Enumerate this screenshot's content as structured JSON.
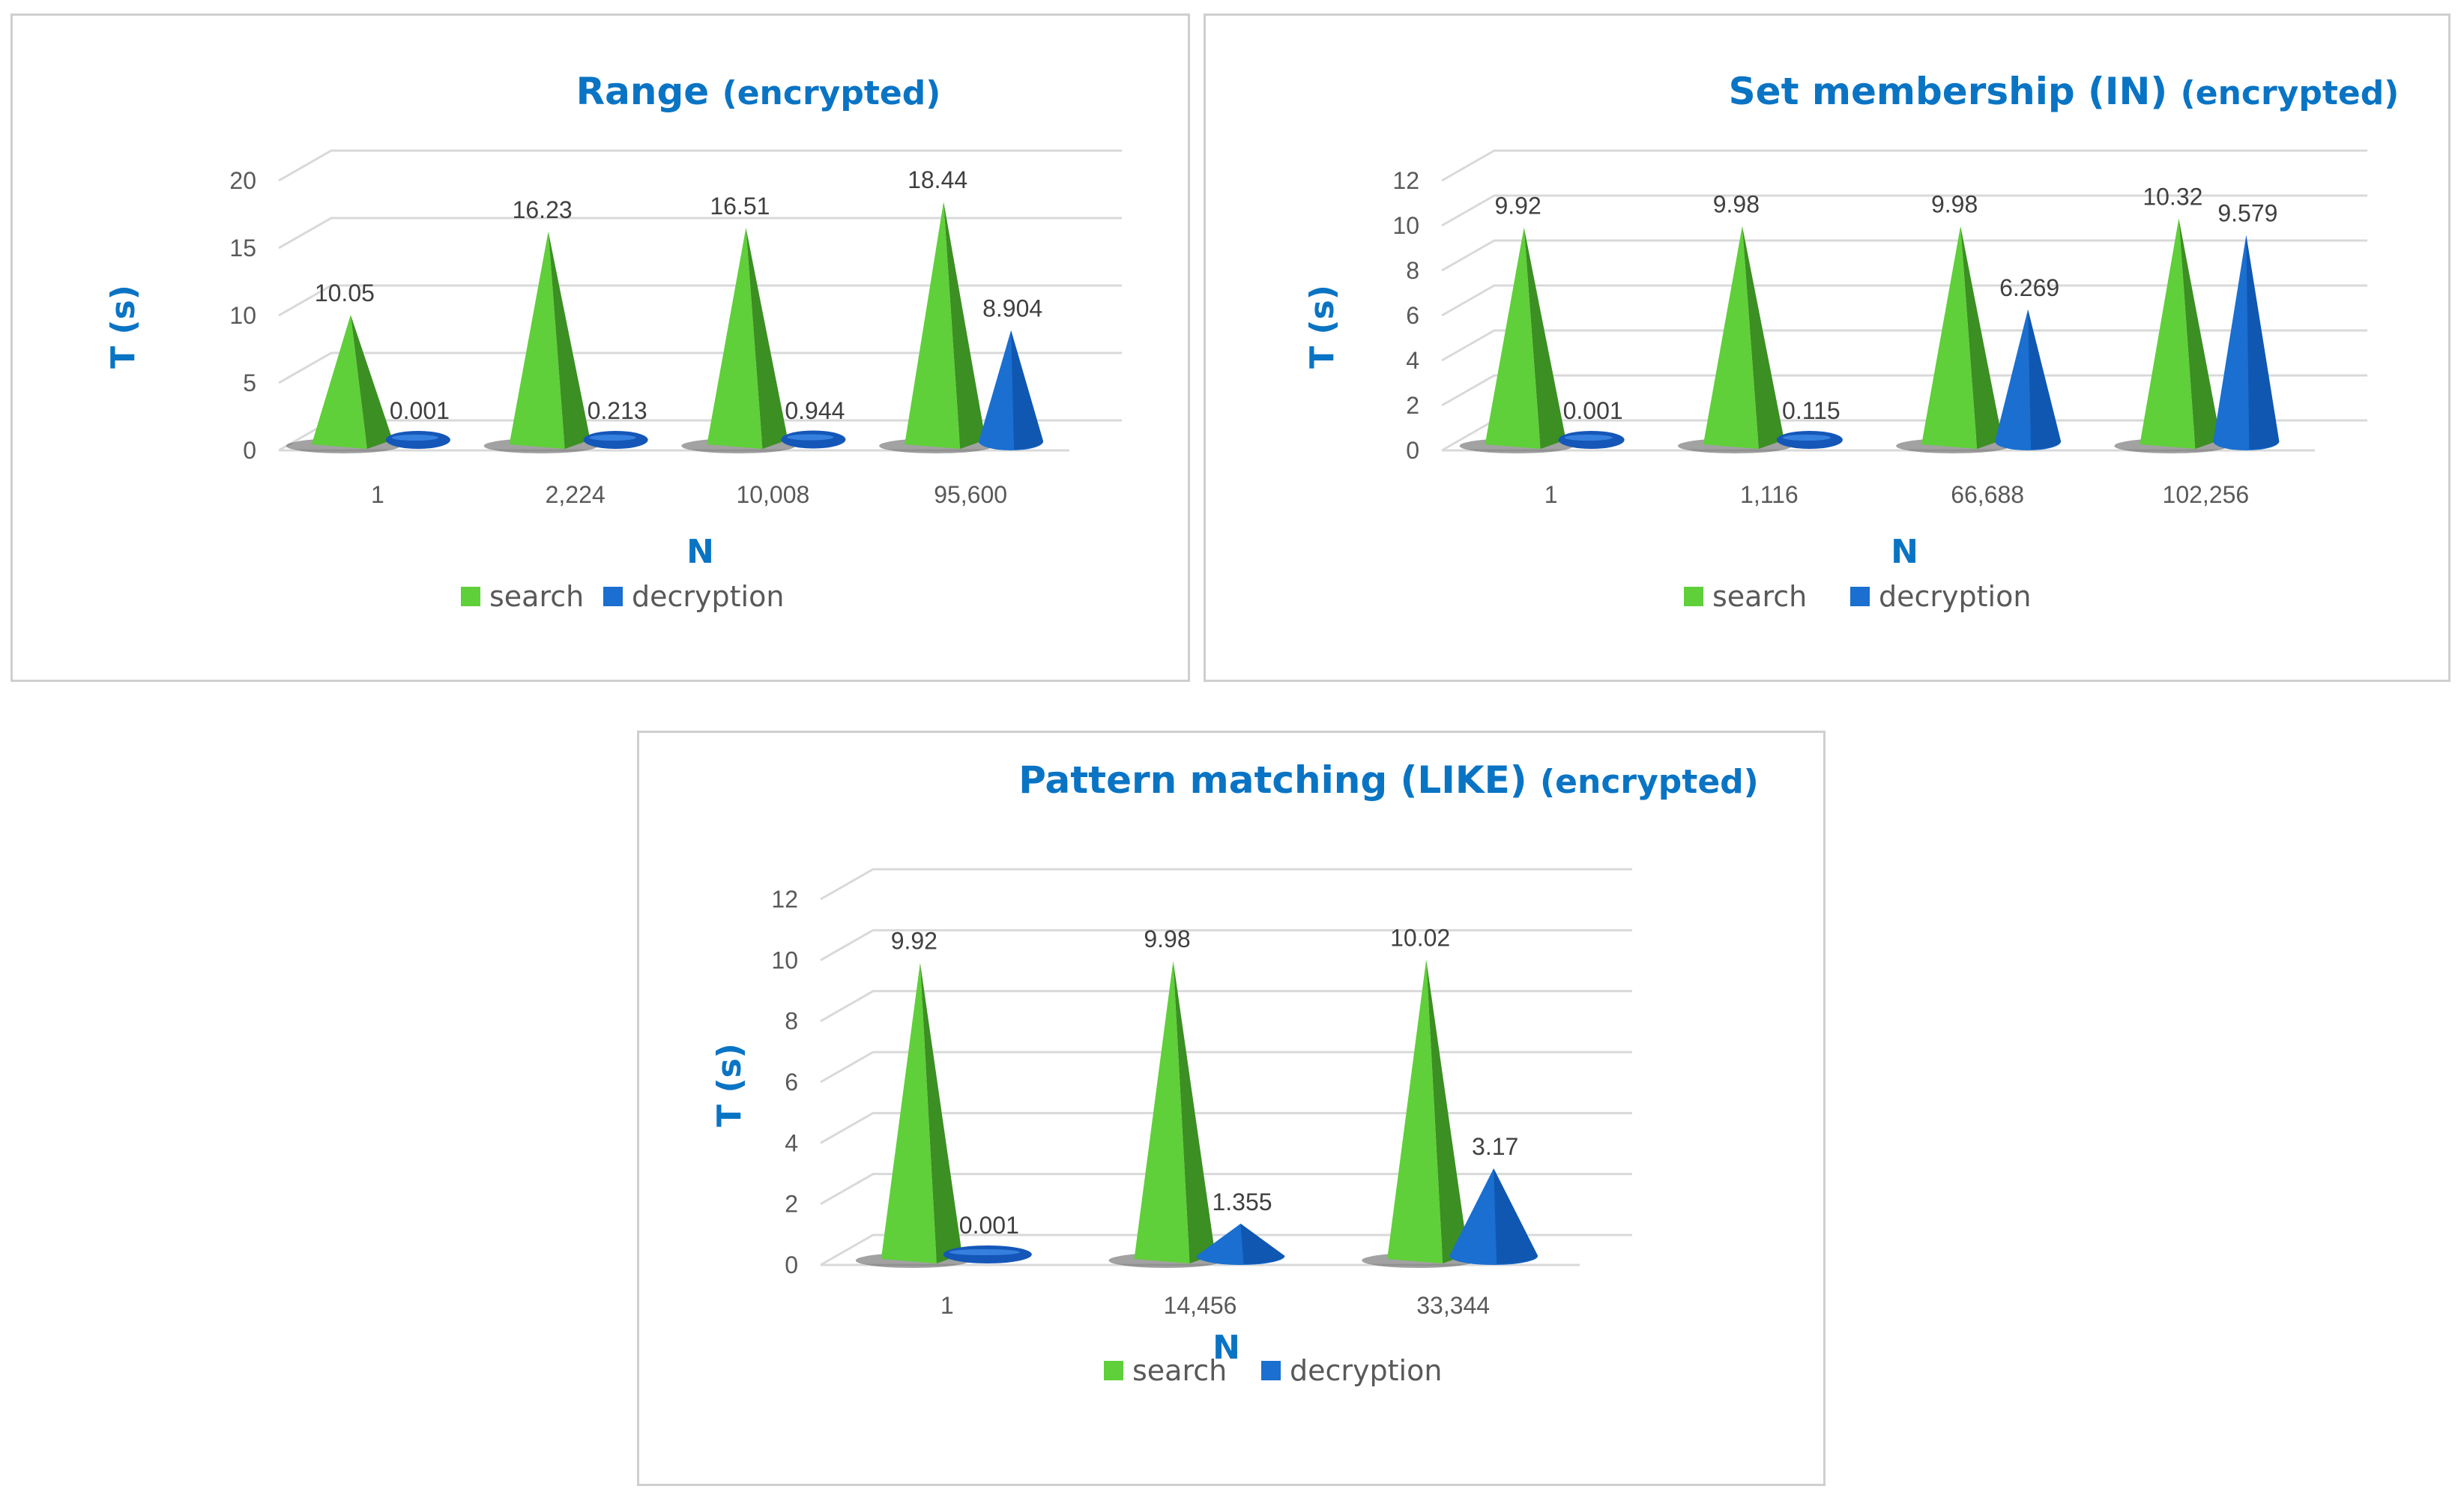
{
  "chart_data": [
    {
      "type": "bar",
      "title": "Range",
      "title_suffix": "(encrypted)",
      "xlabel": "N",
      "ylabel": "T (s)",
      "ylim": [
        0,
        20
      ],
      "yticks": [
        0,
        5,
        10,
        15,
        20
      ],
      "categories": [
        "1",
        "2,224",
        "10,008",
        "95,600"
      ],
      "series": [
        {
          "name": "search",
          "values": [
            10.05,
            16.23,
            16.51,
            18.44
          ],
          "labels": [
            "10.05",
            "16.23",
            "16.51",
            "18.44"
          ],
          "color": "#5fcf3a"
        },
        {
          "name": "decryption",
          "values": [
            0.001,
            0.213,
            0.944,
            8.904
          ],
          "labels": [
            "0.001",
            "0.213",
            "0.944",
            "8.904"
          ],
          "color": "#1a6fd0"
        }
      ],
      "legend_position": "bottom",
      "grid": true
    },
    {
      "type": "bar",
      "title": "Set membership (IN)",
      "title_suffix": "(encrypted)",
      "xlabel": "N",
      "ylabel": "T (s)",
      "ylim": [
        0,
        12
      ],
      "yticks": [
        0,
        2,
        4,
        6,
        8,
        10,
        12
      ],
      "categories": [
        "1",
        "1,116",
        "66,688",
        "102,256"
      ],
      "series": [
        {
          "name": "search",
          "values": [
            9.92,
            9.98,
            9.98,
            10.32
          ],
          "labels": [
            "9.92",
            "9.98",
            "9.98",
            "10.32"
          ],
          "color": "#5fcf3a"
        },
        {
          "name": "decryption",
          "values": [
            0.001,
            0.115,
            6.269,
            9.579
          ],
          "labels": [
            "0.001",
            "0.115",
            "6.269",
            "9.579"
          ],
          "color": "#1a6fd0"
        }
      ],
      "legend_position": "bottom",
      "grid": true
    },
    {
      "type": "bar",
      "title": "Pattern matching (LIKE)",
      "title_suffix": "(encrypted)",
      "xlabel": "N",
      "ylabel": "T (s)",
      "ylim": [
        0,
        12
      ],
      "yticks": [
        0,
        2,
        4,
        6,
        8,
        10,
        12
      ],
      "categories": [
        "1",
        "14,456",
        "33,344"
      ],
      "series": [
        {
          "name": "search",
          "values": [
            9.92,
            9.98,
            10.02
          ],
          "labels": [
            "9.92",
            "9.98",
            "10.02"
          ],
          "color": "#5fcf3a"
        },
        {
          "name": "decryption",
          "values": [
            0.001,
            1.355,
            3.17
          ],
          "labels": [
            "0.001",
            "1.355",
            "3.17"
          ],
          "color": "#1a6fd0"
        }
      ],
      "legend_position": "bottom",
      "grid": true
    }
  ]
}
